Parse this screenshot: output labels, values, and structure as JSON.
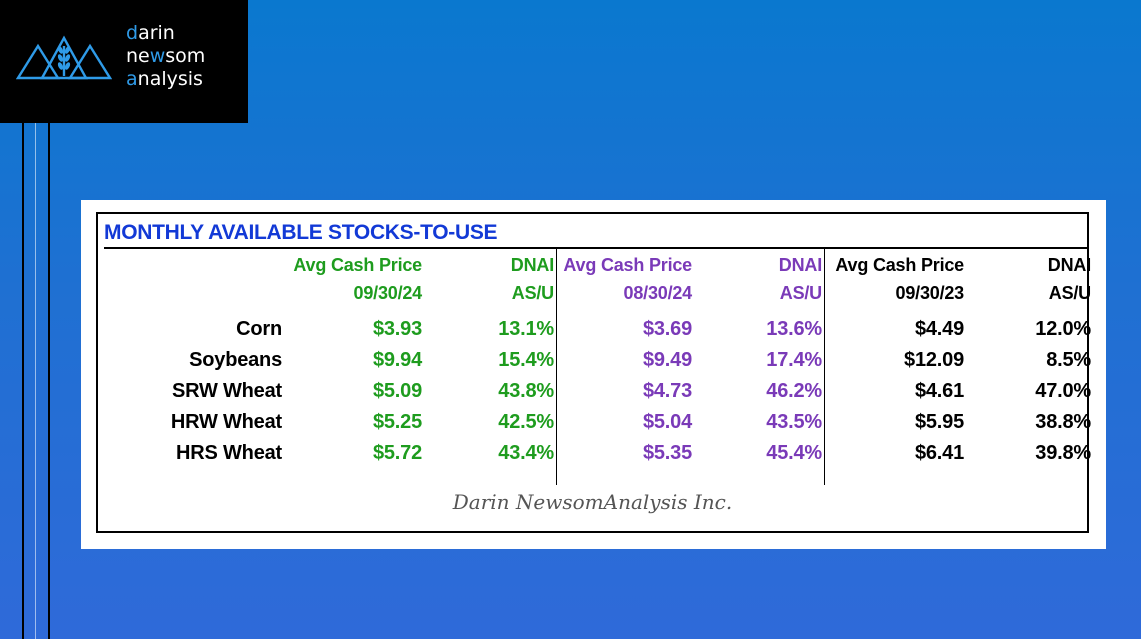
{
  "brand": {
    "line1_accent": "d",
    "line1_rest": "arin",
    "line2_start": "ne",
    "line2_accent": "w",
    "line2_rest": "som",
    "line3_accent": "a",
    "line3_rest": "nalysis",
    "accent_color": "#2f9be8"
  },
  "table": {
    "title": "MONTHLY AVAILABLE STOCKS-TO-USE",
    "groups": [
      {
        "price_label": "Avg Cash Price",
        "date": "09/30/24",
        "dnai_label": "DNAI",
        "asu_label": "AS/U",
        "color": "#1e9c1e"
      },
      {
        "price_label": "Avg Cash Price",
        "date": "08/30/24",
        "dnai_label": "DNAI",
        "asu_label": "AS/U",
        "color": "#7a3ab8"
      },
      {
        "price_label": "Avg Cash Price",
        "date": "09/30/23",
        "dnai_label": "DNAI",
        "asu_label": "AS/U",
        "color": "#000000"
      }
    ],
    "rows": [
      {
        "crop": "Corn",
        "values": [
          "$3.93",
          "13.1%",
          "$3.69",
          "13.6%",
          "$4.49",
          "12.0%"
        ]
      },
      {
        "crop": "Soybeans",
        "values": [
          "$9.94",
          "15.4%",
          "$9.49",
          "17.4%",
          "$12.09",
          "8.5%"
        ]
      },
      {
        "crop": "SRW Wheat",
        "values": [
          "$5.09",
          "43.8%",
          "$4.73",
          "46.2%",
          "$4.61",
          "47.0%"
        ]
      },
      {
        "crop": "HRW Wheat",
        "values": [
          "$5.25",
          "42.5%",
          "$5.04",
          "43.5%",
          "$5.95",
          "38.8%"
        ]
      },
      {
        "crop": "HRS Wheat",
        "values": [
          "$5.72",
          "43.4%",
          "$5.35",
          "45.4%",
          "$6.41",
          "39.8%"
        ]
      }
    ],
    "footer": "Darin NewsomAnalysis Inc."
  }
}
